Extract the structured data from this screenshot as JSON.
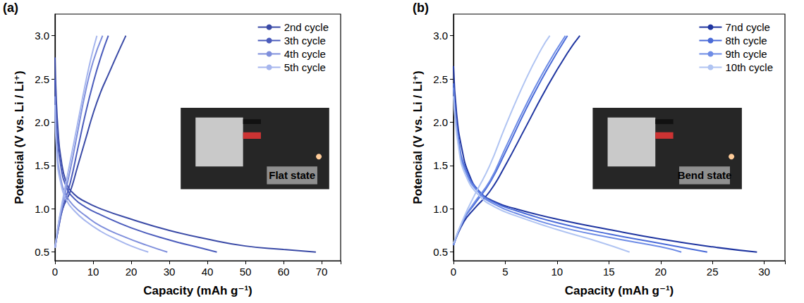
{
  "chart_data": [
    {
      "type": "line",
      "panel_label": "(a)",
      "x_label": "Capacity (mAh g⁻¹)",
      "y_label": "Potencial (V vs. Li / Li⁺)",
      "xlim": [
        0,
        75
      ],
      "xticks": [
        0,
        10,
        20,
        30,
        40,
        50,
        60,
        70
      ],
      "ylim": [
        0.4,
        3.25
      ],
      "yticks": [
        0.5,
        {
          "value": 1,
          "label": "1.0"
        },
        1.5,
        {
          "value": 2,
          "label": "2.0"
        },
        2.5,
        {
          "value": 3,
          "label": "3.0"
        }
      ],
      "grid": false,
      "legend": "upper right",
      "annotations": [
        "Flat state"
      ],
      "series": [
        {
          "name": "2nd cycle",
          "color": "#3a4aa6",
          "discharge": [
            [
              0,
              2.75
            ],
            [
              0.3,
              2.3
            ],
            [
              0.8,
              1.9
            ],
            [
              1.5,
              1.6
            ],
            [
              3,
              1.3
            ],
            [
              5,
              1.17
            ],
            [
              8,
              1.08
            ],
            [
              12,
              1.0
            ],
            [
              20,
              0.88
            ],
            [
              30,
              0.75
            ],
            [
              40,
              0.65
            ],
            [
              50,
              0.57
            ],
            [
              60,
              0.53
            ],
            [
              68.5,
              0.5
            ]
          ],
          "charge": [
            [
              0,
              0.55
            ],
            [
              1,
              0.8
            ],
            [
              2,
              1.0
            ],
            [
              4,
              1.2
            ],
            [
              6,
              1.5
            ],
            [
              8,
              1.8
            ],
            [
              10,
              2.1
            ],
            [
              12,
              2.35
            ],
            [
              14,
              2.55
            ],
            [
              16,
              2.75
            ],
            [
              18.6,
              3.0
            ]
          ]
        },
        {
          "name": "3th cycle",
          "color": "#4b5cbc",
          "discharge": [
            [
              0,
              2.5
            ],
            [
              0.5,
              1.9
            ],
            [
              1.5,
              1.5
            ],
            [
              3,
              1.25
            ],
            [
              5,
              1.12
            ],
            [
              8,
              1.02
            ],
            [
              12,
              0.93
            ],
            [
              20,
              0.78
            ],
            [
              30,
              0.64
            ],
            [
              38,
              0.55
            ],
            [
              42.5,
              0.5
            ]
          ],
          "charge": [
            [
              0,
              0.55
            ],
            [
              1,
              0.8
            ],
            [
              2,
              1.0
            ],
            [
              4,
              1.3
            ],
            [
              6,
              1.7
            ],
            [
              8,
              2.1
            ],
            [
              10,
              2.45
            ],
            [
              12,
              2.75
            ],
            [
              14,
              3.0
            ]
          ]
        },
        {
          "name": "4th cycle",
          "color": "#7f8fdc",
          "discharge": [
            [
              0,
              2.3
            ],
            [
              0.5,
              1.7
            ],
            [
              1.5,
              1.35
            ],
            [
              3,
              1.15
            ],
            [
              5,
              1.03
            ],
            [
              8,
              0.92
            ],
            [
              12,
              0.8
            ],
            [
              18,
              0.68
            ],
            [
              24,
              0.58
            ],
            [
              29.5,
              0.5
            ]
          ],
          "charge": [
            [
              0,
              0.55
            ],
            [
              1,
              0.85
            ],
            [
              2,
              1.05
            ],
            [
              4,
              1.45
            ],
            [
              6,
              1.9
            ],
            [
              8,
              2.35
            ],
            [
              10,
              2.7
            ],
            [
              12.5,
              3.0
            ]
          ]
        },
        {
          "name": "5th cycle",
          "color": "#a6b6ee",
          "discharge": [
            [
              0,
              2.2
            ],
            [
              0.5,
              1.6
            ],
            [
              1.5,
              1.3
            ],
            [
              3,
              1.1
            ],
            [
              5,
              0.98
            ],
            [
              8,
              0.86
            ],
            [
              12,
              0.74
            ],
            [
              16,
              0.65
            ],
            [
              20,
              0.57
            ],
            [
              24.5,
              0.5
            ]
          ],
          "charge": [
            [
              0,
              0.55
            ],
            [
              1,
              0.85
            ],
            [
              2,
              1.1
            ],
            [
              4,
              1.55
            ],
            [
              6,
              2.0
            ],
            [
              8,
              2.45
            ],
            [
              9.5,
              2.75
            ],
            [
              11,
              3.0
            ]
          ]
        }
      ]
    },
    {
      "type": "line",
      "panel_label": "(b)",
      "x_label": "Capacity (mAh g⁻¹)",
      "y_label": "Potencial (V vs. Li / Li⁺)",
      "xlim": [
        0,
        32
      ],
      "xticks": [
        0,
        5,
        10,
        15,
        20,
        25,
        30
      ],
      "ylim": [
        0.4,
        3.25
      ],
      "yticks": [
        0.5,
        {
          "value": 1,
          "label": "1.0"
        },
        1.5,
        {
          "value": 2,
          "label": "2.0"
        },
        2.5,
        {
          "value": 3,
          "label": "3.0"
        }
      ],
      "grid": false,
      "legend": "upper right",
      "annotations": [
        "Bend state"
      ],
      "series": [
        {
          "name": "7nd cycle",
          "color": "#1f35a0",
          "discharge": [
            [
              0,
              2.65
            ],
            [
              0.3,
              2.1
            ],
            [
              0.8,
              1.7
            ],
            [
              1.5,
              1.4
            ],
            [
              2.5,
              1.2
            ],
            [
              4,
              1.08
            ],
            [
              6,
              1.0
            ],
            [
              10,
              0.88
            ],
            [
              15,
              0.76
            ],
            [
              20,
              0.65
            ],
            [
              25,
              0.56
            ],
            [
              29.3,
              0.5
            ]
          ],
          "charge": [
            [
              0,
              0.58
            ],
            [
              1,
              0.85
            ],
            [
              2,
              1.0
            ],
            [
              3.5,
              1.2
            ],
            [
              5,
              1.5
            ],
            [
              7,
              1.95
            ],
            [
              9,
              2.4
            ],
            [
              11,
              2.8
            ],
            [
              12.2,
              3.0
            ]
          ]
        },
        {
          "name": "8th cycle",
          "color": "#4a6bd8",
          "discharge": [
            [
              0,
              2.45
            ],
            [
              0.5,
              1.8
            ],
            [
              1.2,
              1.45
            ],
            [
              2.5,
              1.2
            ],
            [
              4,
              1.07
            ],
            [
              6,
              0.98
            ],
            [
              10,
              0.84
            ],
            [
              15,
              0.71
            ],
            [
              20,
              0.6
            ],
            [
              24.5,
              0.5
            ]
          ],
          "charge": [
            [
              0,
              0.58
            ],
            [
              1,
              0.88
            ],
            [
              2,
              1.05
            ],
            [
              3.5,
              1.3
            ],
            [
              5,
              1.65
            ],
            [
              7,
              2.15
            ],
            [
              9,
              2.6
            ],
            [
              11,
              3.0
            ]
          ]
        },
        {
          "name": "9th cycle",
          "color": "#6e8ce6",
          "discharge": [
            [
              0,
              2.4
            ],
            [
              0.5,
              1.75
            ],
            [
              1.2,
              1.42
            ],
            [
              2.5,
              1.18
            ],
            [
              4,
              1.05
            ],
            [
              6,
              0.95
            ],
            [
              10,
              0.8
            ],
            [
              15,
              0.67
            ],
            [
              20,
              0.56
            ],
            [
              22,
              0.5
            ]
          ],
          "charge": [
            [
              0,
              0.58
            ],
            [
              1,
              0.88
            ],
            [
              2,
              1.07
            ],
            [
              3.5,
              1.32
            ],
            [
              5,
              1.7
            ],
            [
              7,
              2.2
            ],
            [
              9,
              2.65
            ],
            [
              10.8,
              3.0
            ]
          ]
        },
        {
          "name": "10th cycle",
          "color": "#b0c4f2",
          "discharge": [
            [
              0,
              2.3
            ],
            [
              0.5,
              1.7
            ],
            [
              1.2,
              1.38
            ],
            [
              2.5,
              1.15
            ],
            [
              4,
              1.02
            ],
            [
              6,
              0.92
            ],
            [
              10,
              0.76
            ],
            [
              14,
              0.62
            ],
            [
              17,
              0.5
            ]
          ],
          "charge": [
            [
              0,
              0.6
            ],
            [
              1,
              0.9
            ],
            [
              2,
              1.15
            ],
            [
              3.5,
              1.5
            ],
            [
              5,
              1.95
            ],
            [
              7,
              2.5
            ],
            [
              8.5,
              2.85
            ],
            [
              9.3,
              3.0
            ]
          ]
        }
      ]
    }
  ]
}
